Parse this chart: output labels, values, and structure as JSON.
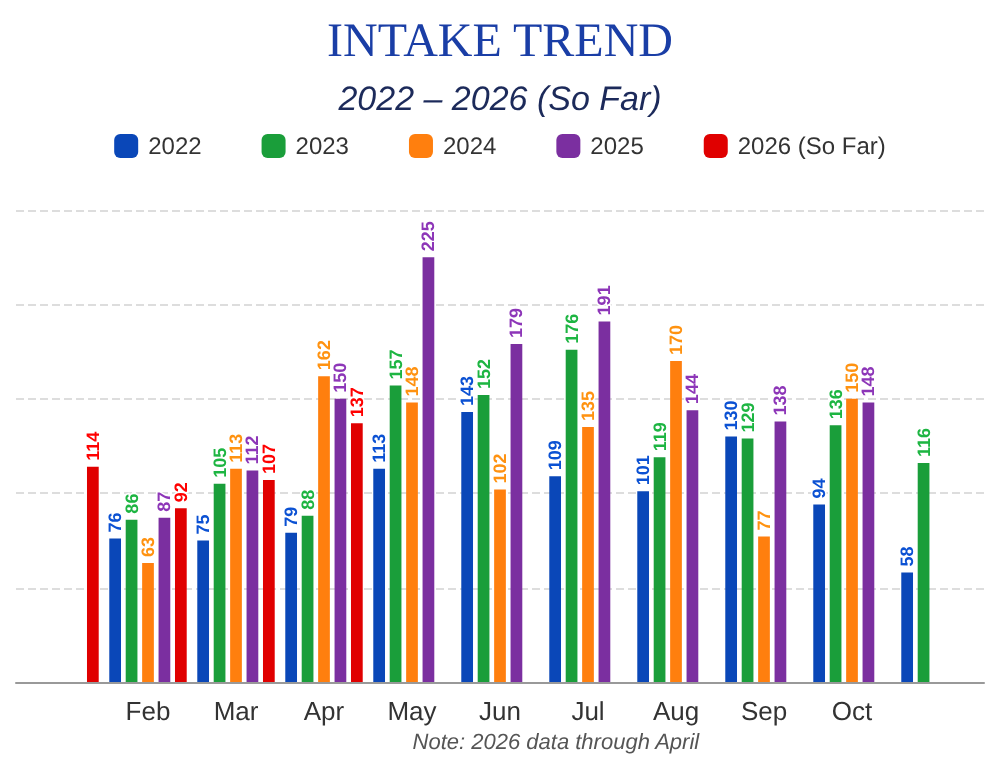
{
  "chart_data": {
    "type": "bar",
    "title": "INTAKE TREND",
    "subtitle": "2022 – 2026 (So Far)",
    "categories": [
      null,
      "Feb",
      "Mar",
      "Apr",
      "May",
      "Jun",
      "Jul",
      "Aug",
      "Sep",
      "Oct",
      null
    ],
    "series": [
      {
        "name": "2022",
        "color": "#0a47b8",
        "values": [
          null,
          76,
          75,
          79,
          113,
          143,
          109,
          101,
          130,
          94,
          58
        ]
      },
      {
        "name": "2023",
        "color": "#1a9e3a",
        "values": [
          null,
          86,
          105,
          88,
          157,
          152,
          176,
          119,
          129,
          136,
          116
        ]
      },
      {
        "name": "2024",
        "color": "#ff7f0e",
        "values": [
          null,
          63,
          113,
          162,
          148,
          102,
          135,
          170,
          77,
          150,
          null
        ]
      },
      {
        "name": "2025",
        "color": "#7b2fa0",
        "values": [
          null,
          87,
          112,
          150,
          225,
          179,
          191,
          144,
          138,
          148,
          null
        ]
      },
      {
        "name": "2026 (So Far)",
        "color": "#e00000",
        "values": [
          114,
          92,
          107,
          137,
          null,
          null,
          null,
          null,
          null,
          null,
          null
        ]
      }
    ],
    "ylim": [
      0,
      250
    ],
    "yticks": [
      {
        "value": 0,
        "label": null
      },
      {
        "value": 50,
        "label": null
      },
      {
        "value": 100,
        "label": null
      },
      {
        "value": 150,
        "label": null
      },
      {
        "value": 200,
        "label": null
      },
      {
        "value": 250,
        "label": null
      }
    ],
    "tick_labels": "x",
    "grid": "y",
    "legend": "top",
    "data_labels": true,
    "annotations": [
      "Note: 2026 data through April"
    ]
  }
}
